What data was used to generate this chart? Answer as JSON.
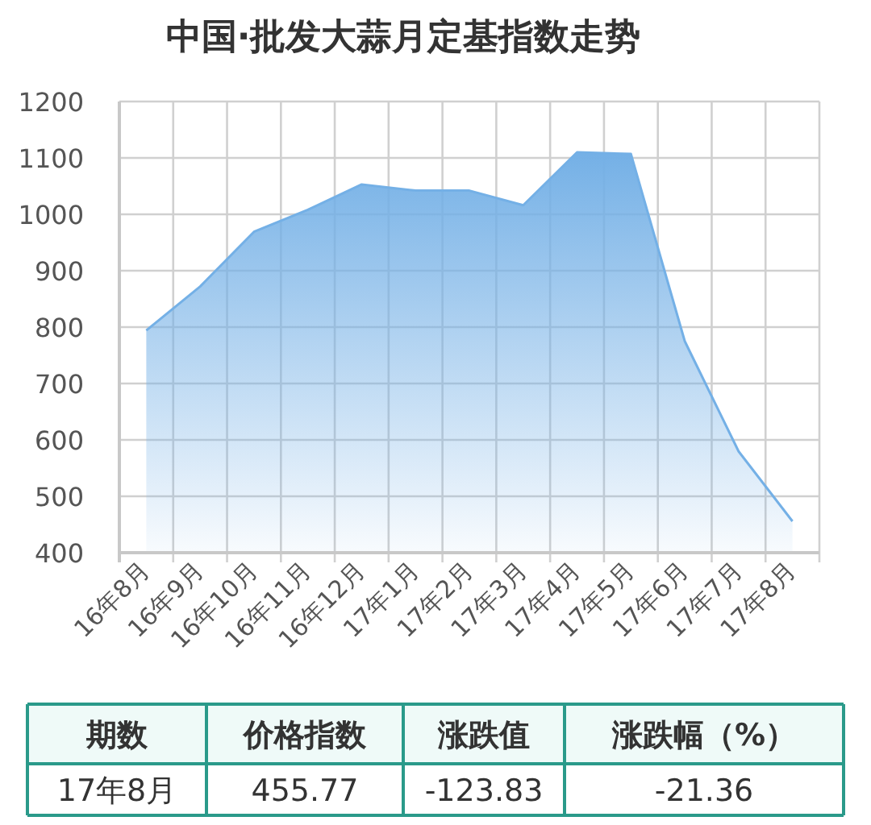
{
  "chart_data": {
    "type": "area",
    "title": "中国·批发大蒜月定基指数走势",
    "categories": [
      "16年8月",
      "16年9月",
      "16年10月",
      "16年11月",
      "16年12月",
      "17年1月",
      "17年2月",
      "17年3月",
      "17年4月",
      "17年5月",
      "17年6月",
      "17年7月",
      "17年8月"
    ],
    "values": [
      794,
      872,
      969,
      1008,
      1053,
      1042,
      1042,
      1016,
      1110,
      1107,
      775,
      579.6,
      455.77
    ],
    "color": "#74b0e6",
    "ylim": [
      400,
      1200
    ],
    "yticks": [
      400,
      500,
      600,
      700,
      800,
      900,
      1000,
      1100,
      1200
    ],
    "grid": true,
    "annotations": [
      "期数",
      "价格指数",
      "涨跌值",
      "涨跌幅（%）",
      "17年8月",
      "455.77",
      "-123.83",
      "-21.36"
    ]
  }
}
